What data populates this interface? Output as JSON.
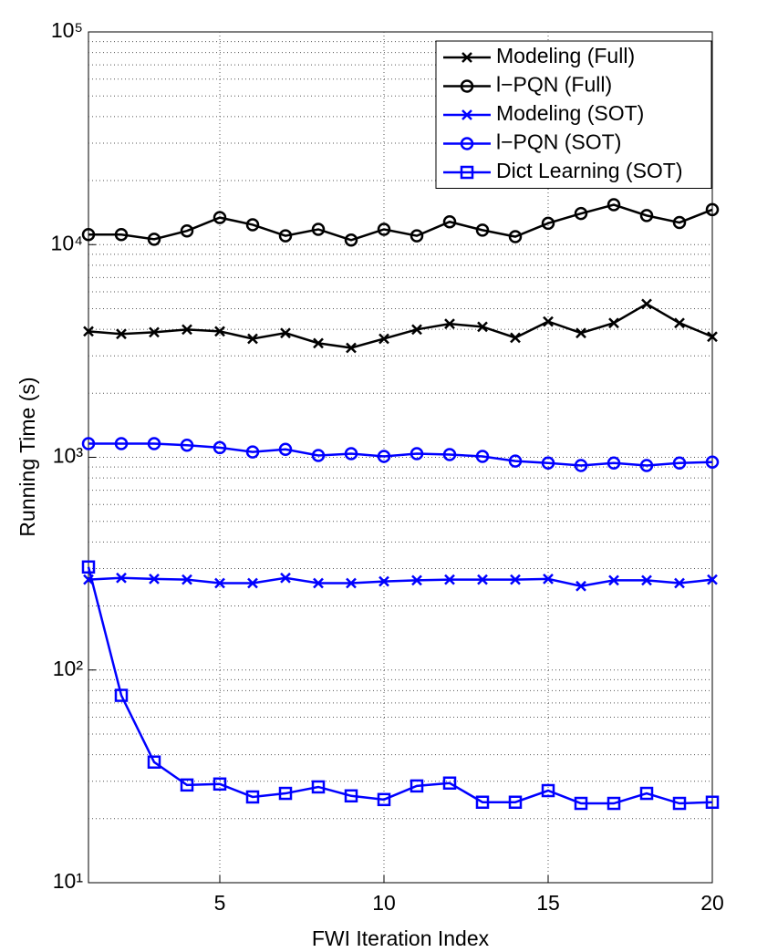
{
  "chart_data": {
    "type": "line",
    "x_label": "FWI Iteration Index",
    "y_label": "Running Time (s)",
    "x": [
      1,
      2,
      3,
      4,
      5,
      6,
      7,
      8,
      9,
      10,
      11,
      12,
      13,
      14,
      15,
      16,
      17,
      18,
      19,
      20
    ],
    "xlim": [
      1,
      20
    ],
    "xticks": [
      5,
      10,
      15,
      20
    ],
    "ylim": [
      10,
      100000
    ],
    "log_y": true,
    "grid": true,
    "legend": "upper right",
    "yticks": [
      {
        "value": 10,
        "label": "10¹"
      },
      {
        "value": 100,
        "label": "10²"
      },
      {
        "value": 1000,
        "label": "10³"
      },
      {
        "value": 10000,
        "label": "10⁴"
      },
      {
        "value": 100000,
        "label": "10⁵"
      }
    ],
    "series": [
      {
        "name": "Modeling (Full)",
        "color": "#000000",
        "marker": "x",
        "values": [
          3910,
          3800,
          3870,
          3990,
          3910,
          3610,
          3840,
          3440,
          3270,
          3610,
          3990,
          4240,
          4110,
          3650,
          4350,
          3840,
          4280,
          5260,
          4280,
          3690
        ]
      },
      {
        "name": "l−PQN (Full)",
        "color": "#000000",
        "marker": "o",
        "values": [
          11150,
          11150,
          10600,
          11600,
          13400,
          12400,
          11000,
          11800,
          10500,
          11800,
          11000,
          12800,
          11700,
          10900,
          12600,
          14000,
          15400,
          13700,
          12700,
          14600
        ]
      },
      {
        "name": "Modeling (SOT)",
        "color": "#0000ff",
        "marker": "x",
        "values": [
          266,
          271,
          268,
          266,
          256,
          256,
          271,
          256,
          256,
          261,
          264,
          266,
          266,
          266,
          268,
          248,
          264,
          264,
          256,
          266
        ]
      },
      {
        "name": "l−PQN (SOT)",
        "color": "#0000ff",
        "marker": "o",
        "values": [
          1160,
          1160,
          1160,
          1140,
          1110,
          1060,
          1090,
          1020,
          1040,
          1010,
          1040,
          1030,
          1010,
          960,
          940,
          915,
          940,
          915,
          940,
          950
        ]
      },
      {
        "name": "Dict Learning (SOT)",
        "color": "#0000ff",
        "marker": "s",
        "values": [
          305,
          76,
          36.9,
          28.8,
          29.1,
          25.3,
          26.3,
          28.2,
          25.6,
          24.6,
          28.5,
          29.4,
          23.9,
          23.9,
          27.1,
          23.6,
          23.6,
          26.3,
          23.6,
          23.9
        ]
      }
    ]
  }
}
